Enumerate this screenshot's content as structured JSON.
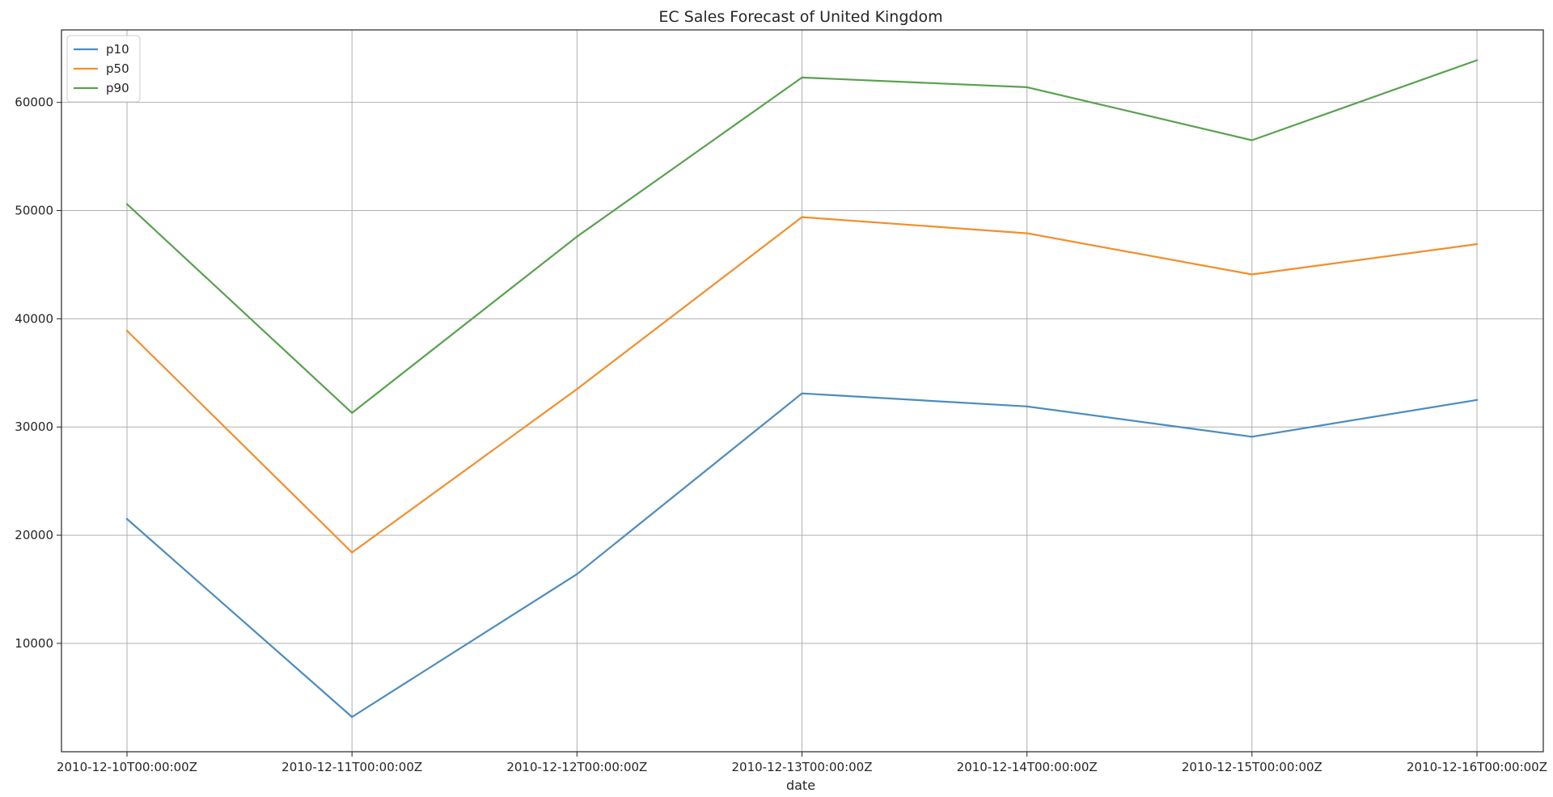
{
  "chart_data": {
    "type": "line",
    "title": "EC Sales Forecast of United Kingdom",
    "xlabel": "date",
    "ylabel": "",
    "categories": [
      "2010-12-10T00:00:00Z",
      "2010-12-11T00:00:00Z",
      "2010-12-12T00:00:00Z",
      "2010-12-13T00:00:00Z",
      "2010-12-14T00:00:00Z",
      "2010-12-15T00:00:00Z",
      "2010-12-16T00:00:00Z"
    ],
    "series": [
      {
        "name": "p10",
        "color": "#4c8cbf",
        "values": [
          21500,
          3200,
          16400,
          33100,
          31900,
          29100,
          32500
        ]
      },
      {
        "name": "p50",
        "color": "#f28e2b",
        "values": [
          38900,
          18400,
          33500,
          49400,
          47900,
          44100,
          46900
        ]
      },
      {
        "name": "p90",
        "color": "#59a14f",
        "values": [
          50600,
          31300,
          47600,
          62300,
          61400,
          56500,
          63900
        ]
      }
    ],
    "yticks": [
      10000,
      20000,
      30000,
      40000,
      50000,
      60000
    ],
    "ylim": [
      -15,
      66700
    ],
    "grid": true,
    "legend_position": "top-left"
  }
}
